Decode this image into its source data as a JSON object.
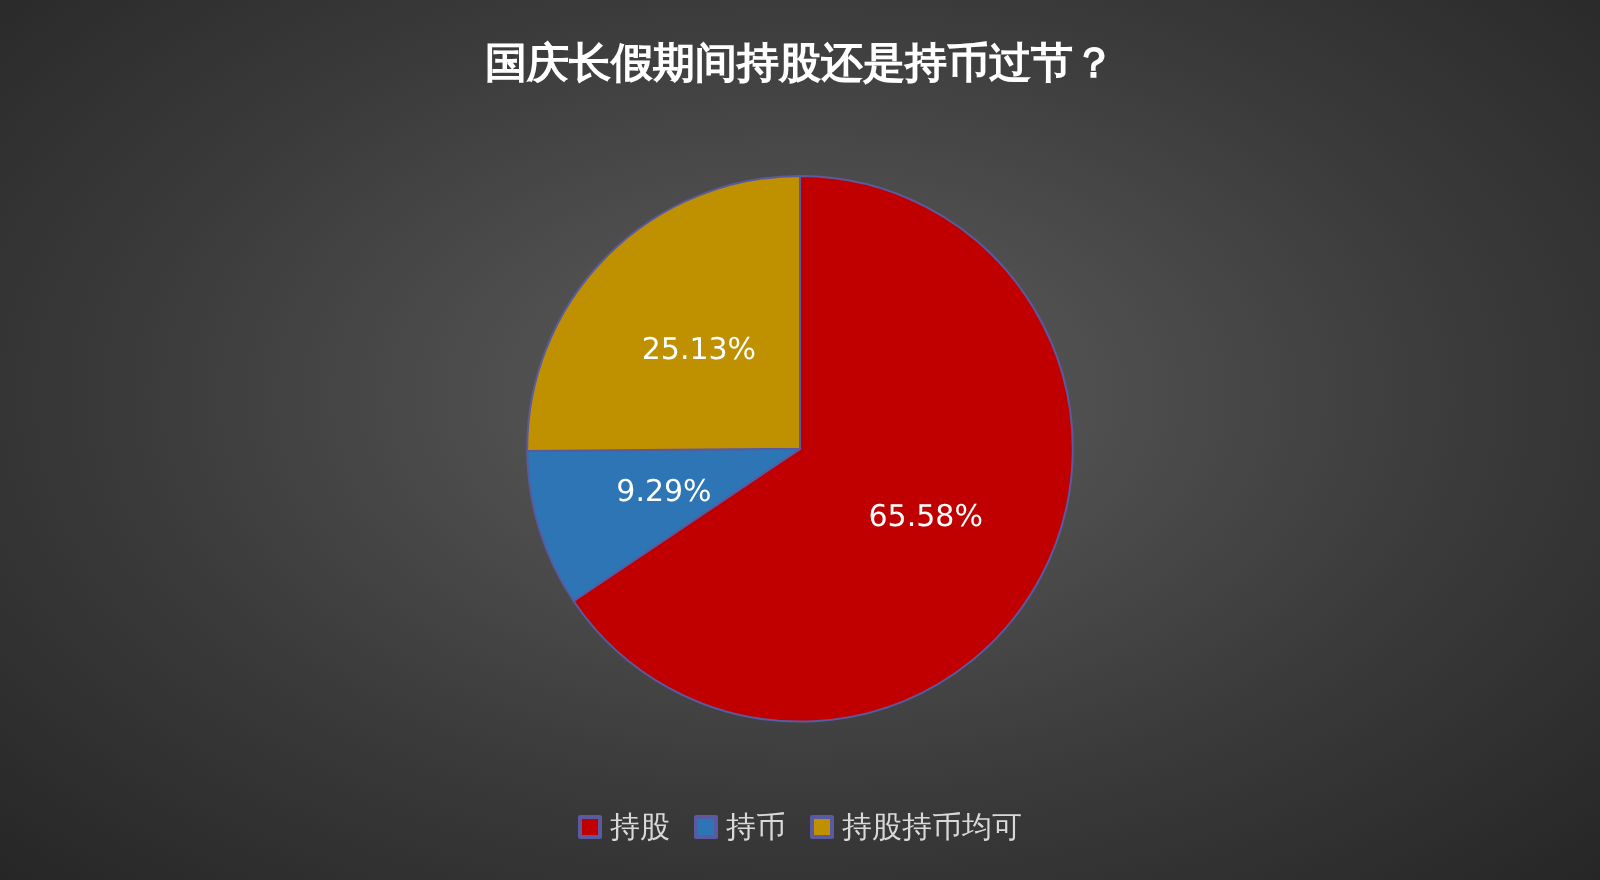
{
  "chart_data": {
    "type": "pie",
    "title": "国庆长假期间持股还是持币过节？",
    "categories": [
      "持股",
      "持币",
      "持股持币均可"
    ],
    "values": [
      65.58,
      9.29,
      25.13
    ],
    "colors": [
      "#c00000",
      "#2e75b6",
      "#bf9000"
    ],
    "value_labels": [
      "65.58%",
      "9.29%",
      "25.13%"
    ],
    "legend": "bottom"
  }
}
